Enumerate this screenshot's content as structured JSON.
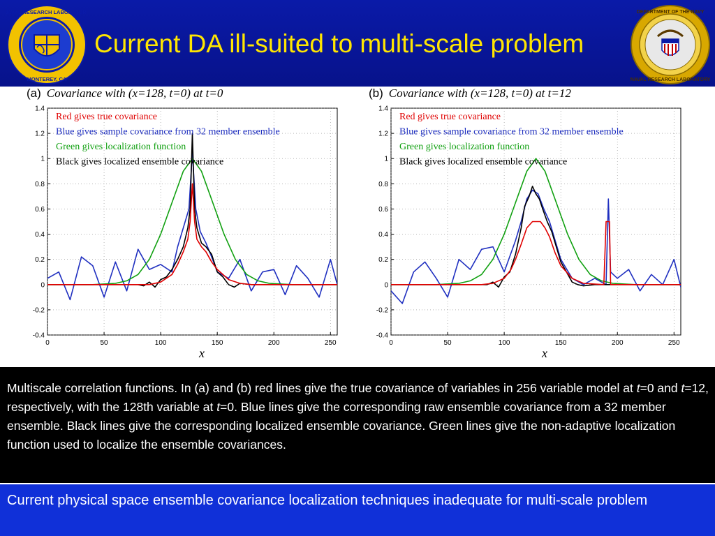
{
  "slide": {
    "title": "Current DA ill-suited to multi-scale problem",
    "logo_left_text": "NAVAL RESEARCH LABORATORY • MONTEREY, CA",
    "logo_right_text": "DEPARTMENT OF THE NAVY • NAVAL RESEARCH LABORATORY",
    "colors": {
      "header": "#0a1aa8",
      "title": "#ffe600",
      "bottom_bar": "#1030d8",
      "caption_bg": "#000000"
    }
  },
  "panels": [
    {
      "tag": "(a)",
      "title": "Covariance with (x=128, t=0) at t=0",
      "xlabel": "x"
    },
    {
      "tag": "(b)",
      "title": "Covariance with (x=128, t=0) at t=12",
      "xlabel": "x"
    }
  ],
  "legend_lines": [
    {
      "text": "Red gives true covariance",
      "color": "#e00000"
    },
    {
      "text": "Blue gives sample covariance from 32 member ensemble",
      "color": "#2030c0"
    },
    {
      "text": "Green gives localization function",
      "color": "#10a010"
    },
    {
      "text": "Black gives localized ensemble covariance",
      "color": "#000000"
    }
  ],
  "chart_data": [
    {
      "type": "line",
      "title": "Covariance with (x=128, t=0) at t=0",
      "xlabel": "x",
      "ylabel": "",
      "xlim": [
        0,
        256
      ],
      "ylim": [
        -0.4,
        1.4
      ],
      "xticks": [
        0,
        50,
        100,
        150,
        200,
        250
      ],
      "yticks": [
        -0.4,
        -0.2,
        0,
        0.2,
        0.4,
        0.6,
        0.8,
        1,
        1.2,
        1.4
      ],
      "grid": true,
      "series": [
        {
          "name": "true covariance",
          "color": "#e00000",
          "x": [
            0,
            60,
            80,
            90,
            100,
            110,
            115,
            120,
            124,
            126,
            128,
            130,
            132,
            136,
            140,
            145,
            150,
            160,
            170,
            180,
            190,
            200,
            256
          ],
          "y": [
            0,
            0,
            0,
            0,
            0.02,
            0.08,
            0.16,
            0.26,
            0.36,
            0.5,
            0.8,
            0.5,
            0.36,
            0.3,
            0.26,
            0.18,
            0.12,
            0.04,
            0.01,
            0,
            0,
            0,
            0
          ]
        },
        {
          "name": "sample covariance from 32 member ensemble",
          "color": "#2030c0",
          "x": [
            0,
            10,
            20,
            30,
            40,
            50,
            60,
            70,
            80,
            90,
            100,
            110,
            115,
            120,
            125,
            128,
            131,
            135,
            140,
            145,
            150,
            160,
            170,
            180,
            190,
            200,
            210,
            220,
            230,
            240,
            250,
            256
          ],
          "y": [
            0.05,
            0.1,
            -0.12,
            0.22,
            0.15,
            -0.1,
            0.18,
            -0.05,
            0.28,
            0.12,
            0.16,
            0.1,
            0.3,
            0.45,
            0.6,
            1.05,
            0.6,
            0.42,
            0.33,
            0.22,
            0.1,
            0.05,
            0.2,
            -0.05,
            0.1,
            0.12,
            -0.08,
            0.15,
            0.05,
            -0.1,
            0.2,
            0.0
          ]
        },
        {
          "name": "localization function",
          "color": "#10a010",
          "x": [
            0,
            40,
            60,
            70,
            80,
            90,
            100,
            110,
            120,
            128,
            136,
            146,
            156,
            166,
            176,
            186,
            196,
            216,
            256
          ],
          "y": [
            0,
            0,
            0.01,
            0.03,
            0.08,
            0.2,
            0.4,
            0.65,
            0.9,
            1.0,
            0.9,
            0.65,
            0.4,
            0.2,
            0.08,
            0.03,
            0.01,
            0,
            0
          ]
        },
        {
          "name": "localized ensemble covariance",
          "color": "#000000",
          "x": [
            0,
            80,
            85,
            90,
            95,
            100,
            105,
            110,
            115,
            120,
            124,
            126,
            128,
            130,
            132,
            136,
            140,
            145,
            150,
            155,
            160,
            165,
            170,
            180,
            256
          ],
          "y": [
            0,
            0,
            -0.01,
            0.02,
            -0.02,
            0.04,
            0.06,
            0.12,
            0.2,
            0.3,
            0.45,
            0.6,
            1.2,
            0.6,
            0.45,
            0.33,
            0.3,
            0.24,
            0.1,
            0.06,
            0.0,
            -0.02,
            0.01,
            0,
            0
          ]
        }
      ]
    },
    {
      "type": "line",
      "title": "Covariance with (x=128, t=0) at t=12",
      "xlabel": "x",
      "ylabel": "",
      "xlim": [
        0,
        256
      ],
      "ylim": [
        -0.4,
        1.4
      ],
      "xticks": [
        0,
        50,
        100,
        150,
        200,
        250
      ],
      "yticks": [
        -0.4,
        -0.2,
        0,
        0.2,
        0.4,
        0.6,
        0.8,
        1,
        1.2,
        1.4
      ],
      "grid": true,
      "series": [
        {
          "name": "true covariance",
          "color": "#e00000",
          "x": [
            0,
            80,
            90,
            100,
            106,
            110,
            115,
            120,
            125,
            128,
            132,
            136,
            140,
            145,
            150,
            160,
            170,
            188,
            190,
            191,
            193,
            194,
            196,
            256
          ],
          "y": [
            0,
            0,
            0.01,
            0.05,
            0.12,
            0.2,
            0.32,
            0.45,
            0.5,
            0.5,
            0.5,
            0.45,
            0.38,
            0.25,
            0.15,
            0.05,
            0.01,
            0,
            0.5,
            0.5,
            0.5,
            0,
            0,
            0
          ]
        },
        {
          "name": "sample covariance from 32 member ensemble",
          "color": "#2030c0",
          "x": [
            0,
            10,
            20,
            30,
            40,
            50,
            60,
            70,
            80,
            90,
            100,
            110,
            115,
            120,
            125,
            130,
            135,
            140,
            150,
            160,
            170,
            180,
            190,
            192,
            194,
            200,
            210,
            220,
            230,
            240,
            250,
            256
          ],
          "y": [
            -0.05,
            -0.15,
            0.1,
            0.18,
            0.05,
            -0.1,
            0.2,
            0.12,
            0.28,
            0.3,
            0.1,
            0.35,
            0.5,
            0.68,
            0.75,
            0.72,
            0.6,
            0.5,
            0.2,
            0.05,
            0.0,
            0.05,
            0.0,
            0.68,
            0.1,
            0.05,
            0.12,
            -0.05,
            0.08,
            0.0,
            0.2,
            -0.02
          ]
        },
        {
          "name": "localization function",
          "color": "#10a010",
          "x": [
            0,
            40,
            60,
            70,
            80,
            90,
            100,
            110,
            120,
            128,
            136,
            146,
            156,
            166,
            176,
            186,
            196,
            216,
            256
          ],
          "y": [
            0,
            0,
            0.01,
            0.03,
            0.08,
            0.2,
            0.4,
            0.65,
            0.9,
            1.0,
            0.9,
            0.65,
            0.4,
            0.2,
            0.08,
            0.03,
            0.01,
            0,
            0
          ]
        },
        {
          "name": "localized ensemble covariance",
          "color": "#000000",
          "x": [
            0,
            85,
            90,
            95,
            100,
            105,
            110,
            115,
            118,
            122,
            125,
            128,
            131,
            134,
            138,
            142,
            146,
            150,
            155,
            160,
            165,
            170,
            180,
            256
          ],
          "y": [
            0,
            0,
            0.02,
            -0.02,
            0.06,
            0.1,
            0.24,
            0.45,
            0.62,
            0.7,
            0.78,
            0.72,
            0.68,
            0.6,
            0.5,
            0.42,
            0.3,
            0.18,
            0.1,
            0.02,
            0.0,
            -0.01,
            0,
            0
          ]
        }
      ]
    }
  ],
  "caption": {
    "text_parts": [
      {
        "t": "Multiscale correlation functions. In (a) and (b) red lines give the true covariance of variables in 256 variable model at ",
        "i": false
      },
      {
        "t": "t",
        "i": true
      },
      {
        "t": "=0 and ",
        "i": false
      },
      {
        "t": "t",
        "i": true
      },
      {
        "t": "=12, respectively, with the 128th variable at ",
        "i": false
      },
      {
        "t": "t",
        "i": true
      },
      {
        "t": "=0. Blue lines give the corresponding raw ensemble covariance from a 32 member ensemble. Black lines give the corresponding localized ensemble covariance. Green lines give the non-adaptive localization function used to localize the ensemble covariances.",
        "i": false
      }
    ]
  },
  "bottom": {
    "text": "Current physical space ensemble covariance localization techniques inadequate for multi-scale problem"
  }
}
